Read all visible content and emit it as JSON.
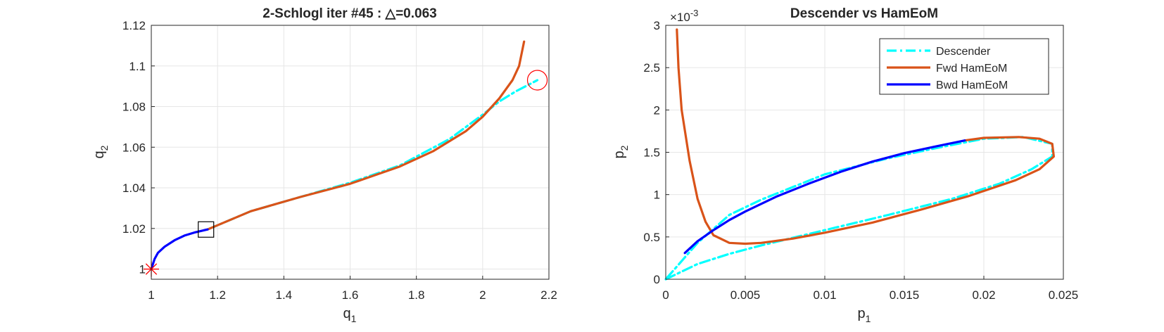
{
  "colors": {
    "descender": "#00FFFF",
    "fwd": "#D95319",
    "bwd": "#0000FF",
    "grid": "#E6E6E6",
    "axis": "#262626",
    "marker_red": "#FF0000"
  },
  "chart_data": [
    {
      "type": "line",
      "title": "2-Schlogl iter #45 : △=0.063",
      "xlabel": "q",
      "xlabel_sub": "1",
      "ylabel": "q",
      "ylabel_sub": "2",
      "xlim": [
        1,
        2.2
      ],
      "ylim": [
        0.995,
        1.12
      ],
      "xticks": [
        1,
        1.2,
        1.4,
        1.6,
        1.8,
        2,
        2.2
      ],
      "xticklabels": [
        "1",
        "1.2",
        "1.4",
        "1.6",
        "1.8",
        "2",
        "2.2"
      ],
      "yticks": [
        1,
        1.02,
        1.04,
        1.06,
        1.08,
        1.1,
        1.12
      ],
      "yticklabels": [
        "1",
        "1.02",
        "1.04",
        "1.06",
        "1.08",
        "1.1",
        "1.12"
      ],
      "grid": true,
      "series": [
        {
          "key": "descender",
          "style": "dashdot",
          "x": [
            1.17,
            1.3,
            1.45,
            1.6,
            1.75,
            1.9,
            2.0,
            2.05,
            2.1,
            2.165
          ],
          "y": [
            1.0195,
            1.0285,
            1.0355,
            1.0425,
            1.051,
            1.064,
            1.076,
            1.0825,
            1.0875,
            1.093
          ]
        },
        {
          "key": "fwd",
          "style": "solid",
          "x": [
            1.17,
            1.3,
            1.45,
            1.6,
            1.75,
            1.85,
            1.95,
            2.0,
            2.05,
            2.09,
            2.11,
            2.125
          ],
          "y": [
            1.0195,
            1.0285,
            1.0355,
            1.042,
            1.0505,
            1.058,
            1.068,
            1.075,
            1.084,
            1.093,
            1.1,
            1.112
          ]
        },
        {
          "key": "bwd",
          "style": "solid",
          "x": [
            1.0,
            1.01,
            1.02,
            1.04,
            1.07,
            1.1,
            1.13,
            1.17
          ],
          "y": [
            1.0,
            1.005,
            1.008,
            1.011,
            1.0142,
            1.0165,
            1.018,
            1.0195
          ]
        }
      ],
      "markers": [
        {
          "type": "star",
          "x": 1.0,
          "y": 1.0,
          "color": "#FF0000"
        },
        {
          "type": "square",
          "x": 1.165,
          "y": 1.0195,
          "color": "#000000"
        },
        {
          "type": "circle",
          "x": 2.165,
          "y": 1.093,
          "color": "#FF0000"
        }
      ]
    },
    {
      "type": "line",
      "title": "Descender vs HamEoM",
      "xlabel": "p",
      "xlabel_sub": "1",
      "ylabel": "p",
      "ylabel_sub": "2",
      "y_exponent": "-3",
      "xlim": [
        0,
        0.025
      ],
      "ylim": [
        0,
        3
      ],
      "xticks": [
        0,
        0.005,
        0.01,
        0.015,
        0.02,
        0.025
      ],
      "xticklabels": [
        "0",
        "0.005",
        "0.01",
        "0.015",
        "0.02",
        "0.025"
      ],
      "yticks": [
        0,
        0.5,
        1,
        1.5,
        2,
        2.5,
        3
      ],
      "yticklabels": [
        "0",
        "0.5",
        "1",
        "1.5",
        "2",
        "2.5",
        "3"
      ],
      "grid": true,
      "legend": {
        "location": "top-right",
        "entries": [
          "Descender",
          "Fwd HamEoM",
          "Bwd HamEoM"
        ]
      },
      "series": [
        {
          "key": "descender",
          "name": "Descender",
          "style": "dashdot",
          "x": [
            0.0,
            0.002,
            0.004,
            0.006,
            0.01,
            0.014,
            0.018,
            0.021,
            0.023,
            0.0243,
            0.0243,
            0.0225,
            0.02,
            0.017,
            0.014,
            0.01,
            0.006,
            0.004,
            0.002,
            0.0
          ],
          "y": [
            0.0,
            0.18,
            0.3,
            0.4,
            0.58,
            0.76,
            0.95,
            1.13,
            1.3,
            1.45,
            1.6,
            1.68,
            1.66,
            1.55,
            1.43,
            1.24,
            0.94,
            0.76,
            0.43,
            0.0
          ]
        },
        {
          "key": "fwd",
          "name": "Fwd HamEoM",
          "style": "solid",
          "x": [
            0.0007,
            0.0008,
            0.001,
            0.0015,
            0.002,
            0.0025,
            0.003,
            0.004,
            0.005,
            0.006,
            0.008,
            0.01,
            0.013,
            0.016,
            0.019,
            0.022,
            0.0235,
            0.0244,
            0.0243,
            0.0235,
            0.0222,
            0.02,
            0.0188
          ],
          "y": [
            2.95,
            2.5,
            2.0,
            1.4,
            0.95,
            0.68,
            0.52,
            0.43,
            0.42,
            0.43,
            0.48,
            0.55,
            0.67,
            0.82,
            0.98,
            1.17,
            1.3,
            1.45,
            1.6,
            1.66,
            1.68,
            1.67,
            1.64
          ]
        },
        {
          "key": "bwd",
          "name": "Bwd HamEoM",
          "style": "solid",
          "x": [
            0.0012,
            0.002,
            0.003,
            0.004,
            0.005,
            0.007,
            0.009,
            0.011,
            0.013,
            0.015,
            0.017,
            0.0188
          ],
          "y": [
            0.31,
            0.45,
            0.58,
            0.7,
            0.8,
            0.98,
            1.13,
            1.27,
            1.39,
            1.49,
            1.57,
            1.64
          ]
        }
      ]
    }
  ]
}
